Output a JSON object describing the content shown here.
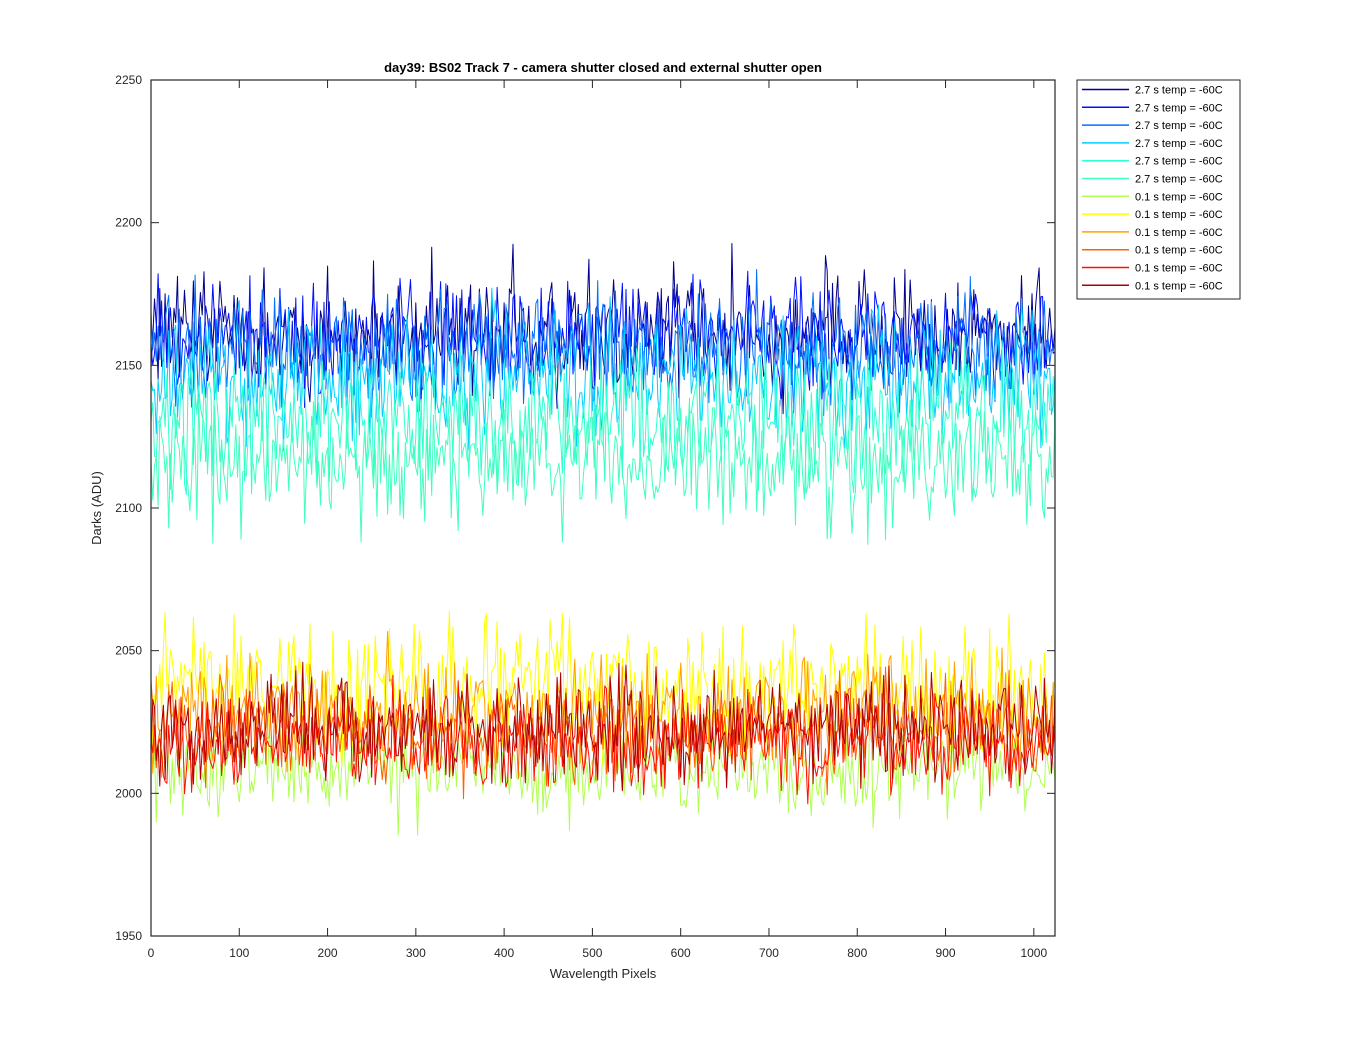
{
  "chart_data": {
    "type": "line",
    "title": "day39: BS02  Track 7 - camera shutter closed and external shutter open",
    "xlabel": "Wavelength Pixels",
    "ylabel": "Darks (ADU)",
    "xlim": [
      0,
      1024
    ],
    "ylim": [
      1950,
      2250
    ],
    "xticks": [
      0,
      100,
      200,
      300,
      400,
      500,
      600,
      700,
      800,
      900,
      1000
    ],
    "yticks": [
      1950,
      2000,
      2050,
      2100,
      2150,
      2200,
      2250
    ],
    "grid": false,
    "legend_location": "outside-top-right",
    "series": [
      {
        "name": "2.7 s temp = -60C",
        "color": "#00008F",
        "mean": 2161,
        "noise": 10,
        "spike_up": 32,
        "spike_down": 14
      },
      {
        "name": "2.7 s temp = -60C",
        "color": "#0010FF",
        "mean": 2159,
        "noise": 10,
        "spike_up": 22,
        "spike_down": 22
      },
      {
        "name": "2.7 s temp = -60C",
        "color": "#0070FF",
        "mean": 2156,
        "noise": 10,
        "spike_up": 20,
        "spike_down": 22
      },
      {
        "name": "2.7 s temp = -60C",
        "color": "#00CFFF",
        "mean": 2146,
        "noise": 11,
        "spike_up": 20,
        "spike_down": 24
      },
      {
        "name": "2.7 s temp = -60C",
        "color": "#30FFCF",
        "mean": 2131,
        "noise": 11,
        "spike_up": 22,
        "spike_down": 28
      },
      {
        "name": "2.7 s temp = -60C",
        "color": "#40FFBF",
        "mean": 2117,
        "noise": 10,
        "spike_up": 20,
        "spike_down": 30
      },
      {
        "name": "0.1 s temp = -60C",
        "color": "#AFFF50",
        "mean": 2009,
        "noise": 7,
        "spike_up": 14,
        "spike_down": 25
      },
      {
        "name": "0.1 s temp = -60C",
        "color": "#FFFF00",
        "mean": 2036,
        "noise": 11,
        "spike_up": 28,
        "spike_down": 20
      },
      {
        "name": "0.1 s temp = -60C",
        "color": "#FFA000",
        "mean": 2027,
        "noise": 9,
        "spike_up": 30,
        "spike_down": 18
      },
      {
        "name": "0.1 s temp = -60C",
        "color": "#FF6000",
        "mean": 2021,
        "noise": 8,
        "spike_up": 24,
        "spike_down": 18
      },
      {
        "name": "0.1 s temp = -60C",
        "color": "#FF1000",
        "mean": 2018,
        "noise": 8,
        "spike_up": 24,
        "spike_down": 22
      },
      {
        "name": "0.1 s temp = -60C",
        "color": "#AF0000",
        "mean": 2022,
        "noise": 8,
        "spike_up": 26,
        "spike_down": 18
      }
    ]
  }
}
